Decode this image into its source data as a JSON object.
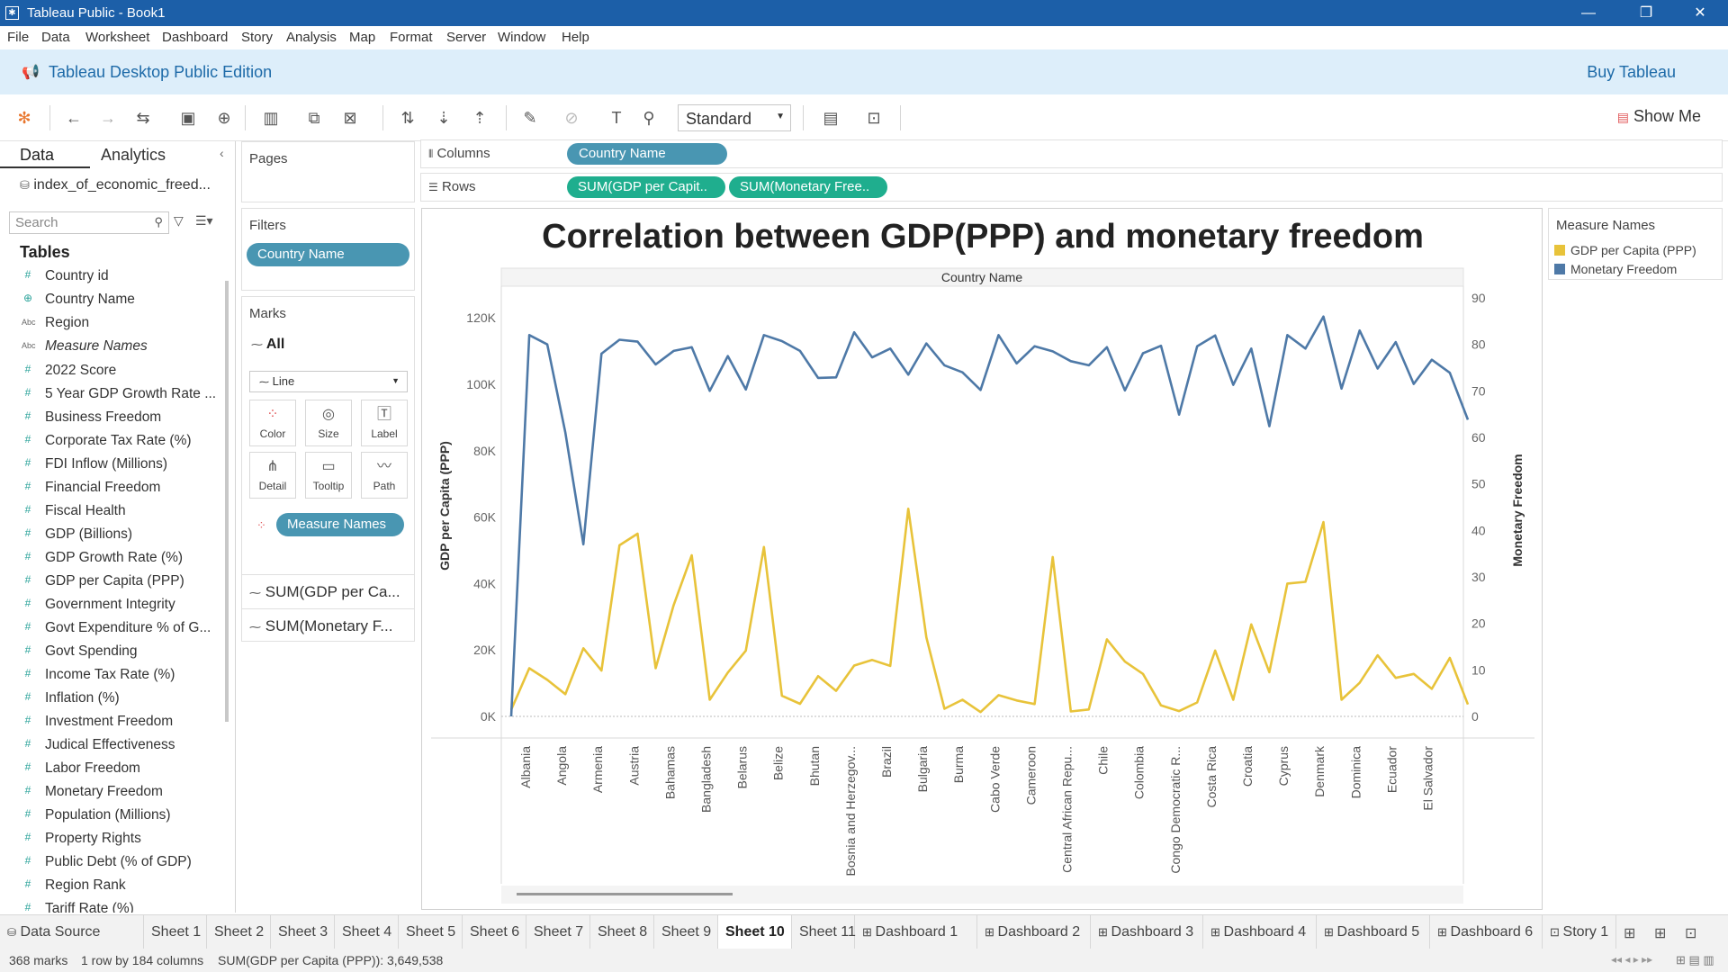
{
  "window": {
    "title": "Tableau Public - Book1"
  },
  "menu": [
    "File",
    "Data",
    "Worksheet",
    "Dashboard",
    "Story",
    "Analysis",
    "Map",
    "Format",
    "Server",
    "Window",
    "Help"
  ],
  "banner": {
    "edition": "Tableau Desktop Public Edition",
    "buy": "Buy Tableau"
  },
  "toolbar": {
    "fit": "Standard",
    "show_me": "Show Me"
  },
  "data_pane": {
    "tabs": [
      "Data",
      "Analytics"
    ],
    "datasource": "index_of_economic_freed...",
    "search_placeholder": "Search",
    "tables_heading": "Tables",
    "fields": [
      {
        "name": "Country id",
        "type": "number"
      },
      {
        "name": "Country Name",
        "type": "geo"
      },
      {
        "name": "Region",
        "type": "abc"
      },
      {
        "name": "Measure Names",
        "type": "abc",
        "italic": true
      },
      {
        "name": "2022 Score",
        "type": "number"
      },
      {
        "name": "5 Year GDP Growth Rate ...",
        "type": "number"
      },
      {
        "name": "Business Freedom",
        "type": "number"
      },
      {
        "name": "Corporate Tax Rate (%)",
        "type": "number"
      },
      {
        "name": "FDI Inflow (Millions)",
        "type": "number"
      },
      {
        "name": "Financial Freedom",
        "type": "number"
      },
      {
        "name": "Fiscal Health",
        "type": "number"
      },
      {
        "name": "GDP (Billions)",
        "type": "number"
      },
      {
        "name": "GDP Growth Rate (%)",
        "type": "number"
      },
      {
        "name": "GDP per Capita (PPP)",
        "type": "number"
      },
      {
        "name": "Government Integrity",
        "type": "number"
      },
      {
        "name": "Govt Expenditure % of G...",
        "type": "number"
      },
      {
        "name": "Govt Spending",
        "type": "number"
      },
      {
        "name": "Income Tax Rate (%)",
        "type": "number"
      },
      {
        "name": "Inflation (%)",
        "type": "number"
      },
      {
        "name": "Investment Freedom",
        "type": "number"
      },
      {
        "name": "Judical Effectiveness",
        "type": "number"
      },
      {
        "name": "Labor Freedom",
        "type": "number"
      },
      {
        "name": "Monetary Freedom",
        "type": "number"
      },
      {
        "name": "Population (Millions)",
        "type": "number"
      },
      {
        "name": "Property Rights",
        "type": "number"
      },
      {
        "name": "Public Debt (% of GDP)",
        "type": "number"
      },
      {
        "name": "Region Rank",
        "type": "number"
      },
      {
        "name": "Tariff Rate (%)",
        "type": "number"
      }
    ]
  },
  "cards": {
    "pages": "Pages",
    "filters": {
      "title": "Filters",
      "pill": "Country Name"
    },
    "marks": {
      "title": "Marks",
      "all": "All",
      "type": "Line",
      "buttons": [
        "Color",
        "Size",
        "Label",
        "Detail",
        "Tooltip",
        "Path"
      ],
      "color_pill": "Measure Names",
      "sums": [
        "SUM(GDP per Ca...",
        "SUM(Monetary F..."
      ]
    }
  },
  "shelves": {
    "columns_label": "Columns",
    "columns_pill": "Country Name",
    "rows_label": "Rows",
    "rows_pills": [
      "SUM(GDP per Capit..",
      "SUM(Monetary Free.."
    ]
  },
  "legend": {
    "title": "Measure Names",
    "items": [
      {
        "name": "GDP per Capita (PPP)",
        "color": "#e8c33a"
      },
      {
        "name": "Monetary Freedom",
        "color": "#4e79a7"
      }
    ]
  },
  "sheet_tabs": {
    "data_source": "Data Source",
    "tabs": [
      "Sheet 1",
      "Sheet 2",
      "Sheet 3",
      "Sheet 4",
      "Sheet 5",
      "Sheet 6",
      "Sheet 7",
      "Sheet 8",
      "Sheet 9",
      "Sheet 10",
      "Sheet 11",
      "Dashboard 1",
      "Dashboard 2",
      "Dashboard 3",
      "Dashboard 4",
      "Dashboard 5",
      "Dashboard 6",
      "Story 1"
    ],
    "active": "Sheet 10"
  },
  "status": {
    "marks": "368 marks",
    "rows": "1 row by 184 columns",
    "sum": "SUM(GDP per Capita (PPP)): 3,649,538"
  },
  "chart_data": {
    "type": "line",
    "title": "Correlation between GDP(PPP) and monetary freedom",
    "header": "Country Name",
    "ylabel_left": "GDP per Capita (PPP)",
    "ylabel_right": "Monetary Freedom",
    "ylim_left": [
      0,
      126000
    ],
    "ylim_right": [
      0,
      90
    ],
    "yticks_left": [
      "0K",
      "20K",
      "40K",
      "60K",
      "80K",
      "100K",
      "120K"
    ],
    "yticks_right": [
      "0",
      "10",
      "20",
      "30",
      "40",
      "50",
      "60",
      "70",
      "80",
      "90"
    ],
    "x_labels": [
      "Albania",
      "Angola",
      "Armenia",
      "Austria",
      "Bahamas",
      "Bangladesh",
      "Belarus",
      "Belize",
      "Bhutan",
      "Bosnia and Herzegov...",
      "Brazil",
      "Bulgaria",
      "Burma",
      "Cabo Verde",
      "Cameroon",
      "Central African Repu...",
      "Chile",
      "Colombia",
      "Congo Democratic R...",
      "Costa Rica",
      "Croatia",
      "Cyprus",
      "Denmark",
      "Dominica",
      "Ecuador",
      "El Salvador"
    ],
    "series": [
      {
        "name": "GDP per Capita (PPP)",
        "color": "#e8c33a",
        "axis": "left",
        "values": [
          2000,
          14500,
          11000,
          6700,
          20500,
          13800,
          51500,
          55000,
          14500,
          33500,
          48500,
          5000,
          13200,
          19800,
          51000,
          6200,
          3800,
          12100,
          7700,
          15300,
          17000,
          15200,
          62500,
          23800,
          2300,
          5000,
          1300,
          6400,
          4800,
          3700,
          48000,
          1500,
          2100,
          23200,
          16500,
          12800,
          3300,
          1600,
          4200,
          19800,
          5000,
          27700,
          13300,
          40000,
          40500,
          58500,
          5000,
          10100,
          18400,
          11600,
          12800,
          8300,
          17600,
          3600
        ]
      },
      {
        "name": "Monetary Freedom",
        "color": "#4e79a7",
        "axis": "right",
        "values": [
          0,
          82,
          80,
          61,
          37,
          78,
          81,
          80.6,
          75.7,
          78.6,
          79.4,
          70,
          77.5,
          70.3,
          82,
          80.7,
          78.6,
          72.8,
          72.9,
          82.6,
          77.2,
          79.1,
          73.5,
          80.2,
          75.5,
          74,
          70.2,
          82,
          75.9,
          79.6,
          78.5,
          76.4,
          75.5,
          79.4,
          70.1,
          78.1,
          79.7,
          64.9,
          79.6,
          81.9,
          71.3,
          79.1,
          62.4,
          82,
          79.1,
          86,
          70.5,
          83,
          74.8,
          80.5,
          71.5,
          76.7,
          73.9,
          63.8
        ]
      }
    ]
  }
}
